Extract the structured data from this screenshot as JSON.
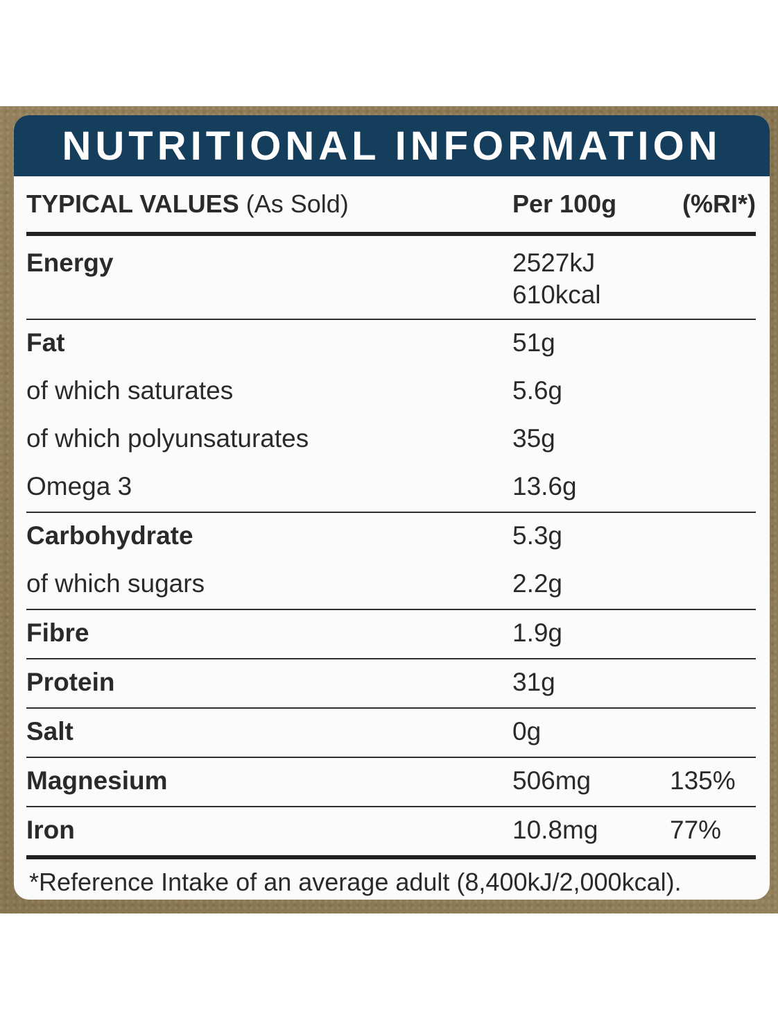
{
  "title": "NUTRITIONAL INFORMATION",
  "header": {
    "col1_bold": "TYPICAL VALUES",
    "col1_rest": " (As Sold)",
    "col2": "Per 100g",
    "col3": "(%RI*)"
  },
  "energy": {
    "label": "Energy",
    "kj": "2527kJ",
    "kcal": "610kcal"
  },
  "rows": [
    {
      "label": "Fat",
      "value": "51g",
      "ri": ""
    },
    {
      "label": "of which saturates",
      "value": "5.6g",
      "ri": ""
    },
    {
      "label": "of which polyunsaturates",
      "value": "35g",
      "ri": ""
    },
    {
      "label": "Omega 3",
      "value": "13.6g",
      "ri": ""
    },
    {
      "label": "Carbohydrate",
      "value": "5.3g",
      "ri": ""
    },
    {
      "label": "of which sugars",
      "value": "2.2g",
      "ri": ""
    },
    {
      "label": "Fibre",
      "value": "1.9g",
      "ri": ""
    },
    {
      "label": "Protein",
      "value": "31g",
      "ri": ""
    },
    {
      "label": "Salt",
      "value": "0g",
      "ri": ""
    },
    {
      "label": "Magnesium",
      "value": "506mg",
      "ri": "135%"
    },
    {
      "label": "Iron",
      "value": "10.8mg",
      "ri": "77%"
    }
  ],
  "footnote": "*Reference Intake of an average adult (8,400kJ/2,000kcal).",
  "colors": {
    "title_bg": "#153d5c",
    "panel_bg": "#fbfbfb",
    "kraft": "#8f7c58"
  }
}
